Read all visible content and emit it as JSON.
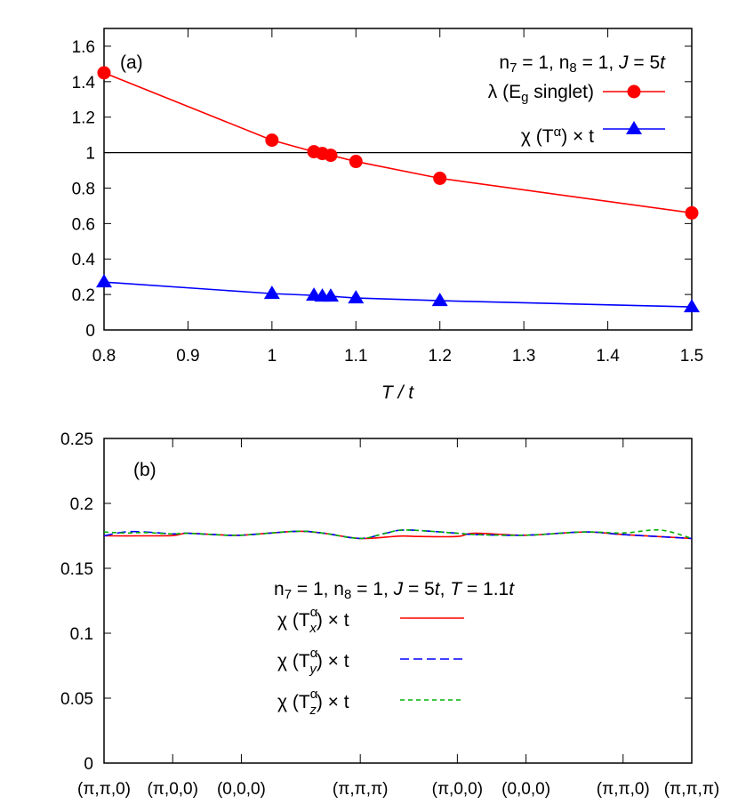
{
  "chart_data": [
    {
      "type": "line",
      "panel_label": "(a)",
      "xlabel": "T / t",
      "ylabel": "",
      "xlim": [
        0.8,
        1.5
      ],
      "ylim": [
        0,
        1.7
      ],
      "xticks": [
        "0.8",
        "0.9",
        "1",
        "1.1",
        "1.2",
        "1.3",
        "1.4",
        "1.5"
      ],
      "yticks": [
        "0",
        "0.2",
        "0.4",
        "0.6",
        "0.8",
        "1",
        "1.2",
        "1.4",
        "1.6"
      ],
      "annotation": "n7 = 1, n8 = 1, J = 5t",
      "reference_line": 1,
      "legend_position": "top-right",
      "series": [
        {
          "name": "λ (Eg singlet)",
          "color": "#ff0000",
          "marker": "circle",
          "x": [
            0.8,
            1.0,
            1.05,
            1.06,
            1.07,
            1.1,
            1.2,
            1.5
          ],
          "y": [
            1.45,
            1.07,
            1.005,
            0.995,
            0.985,
            0.95,
            0.855,
            0.66
          ]
        },
        {
          "name": "χ (T^α) × t",
          "color": "#0000ff",
          "marker": "triangle",
          "x": [
            0.8,
            1.0,
            1.05,
            1.06,
            1.07,
            1.1,
            1.2,
            1.5
          ],
          "y": [
            0.27,
            0.205,
            0.195,
            0.19,
            0.19,
            0.18,
            0.165,
            0.13
          ]
        }
      ]
    },
    {
      "type": "line",
      "panel_label": "(b)",
      "xlabel": "",
      "xlim": [
        0,
        8.56
      ],
      "ylim": [
        0,
        0.25
      ],
      "yticks": [
        "0",
        "0.05",
        "0.1",
        "0.15",
        "0.2",
        "0.25"
      ],
      "xtick_positions": [
        0,
        1,
        2,
        3.732,
        5.146,
        6.146,
        7.56,
        8.56
      ],
      "xticks": [
        "(π,π,0)",
        "(π,0,0)",
        "(0,0,0)",
        "(π,π,π)",
        "(π,0,0)",
        "(0,0,0)",
        "(π,π,0)",
        "(π,π,π)"
      ],
      "annotation": "n7 = 1, n8 = 1, J = 5t, T = 1.1t",
      "legend_position": "center-right",
      "series": [
        {
          "name": "χ (Tx^α) × t",
          "color": "#ff0000",
          "dash": "solid",
          "x": [
            0,
            0.5,
            1,
            1.2,
            1.6,
            2,
            2.8,
            3.2,
            3.732,
            4.3,
            4.6,
            5.146,
            5.4,
            6.146,
            7.0,
            7.56,
            8.56
          ],
          "y": [
            0.175,
            0.175,
            0.1752,
            0.177,
            0.176,
            0.1755,
            0.1785,
            0.177,
            0.173,
            0.1748,
            0.1745,
            0.1745,
            0.177,
            0.1755,
            0.178,
            0.176,
            0.173
          ]
        },
        {
          "name": "χ (Ty^α) × t",
          "color": "#0000ff",
          "dash": "long",
          "x": [
            0,
            0.3,
            0.6,
            1,
            1.2,
            1.6,
            2,
            2.8,
            3.2,
            3.732,
            4.1,
            4.4,
            5.146,
            5.4,
            6.146,
            7.0,
            7.56,
            8.56
          ],
          "y": [
            0.175,
            0.178,
            0.178,
            0.1765,
            0.177,
            0.176,
            0.1755,
            0.1785,
            0.177,
            0.173,
            0.177,
            0.1795,
            0.177,
            0.176,
            0.1755,
            0.178,
            0.176,
            0.173
          ]
        },
        {
          "name": "χ (Tz^α) × t",
          "color": "#00b000",
          "dash": "short",
          "x": [
            0,
            0.3,
            0.6,
            1,
            1.2,
            1.6,
            2,
            2.8,
            3.2,
            3.732,
            4.1,
            4.4,
            5.146,
            5.4,
            6.146,
            7.0,
            7.56,
            8.1,
            8.56
          ],
          "y": [
            0.178,
            0.1772,
            0.1775,
            0.1765,
            0.177,
            0.176,
            0.1755,
            0.1785,
            0.177,
            0.173,
            0.177,
            0.1795,
            0.177,
            0.176,
            0.1755,
            0.178,
            0.1772,
            0.1795,
            0.173
          ]
        }
      ]
    }
  ],
  "legend_a": {
    "annotation": [
      "n",
      "7",
      " = 1, n",
      "8",
      " = 1, ",
      "J",
      " = 5",
      "t"
    ],
    "s1": "λ (E",
    "s1sub": "g",
    "s1end": " singlet)",
    "s2": "χ (T",
    "s2sup": "α",
    "s2end": ") × t"
  },
  "legend_b": {
    "annotation": [
      "n",
      "7",
      " = 1, n",
      "8",
      " = 1, ",
      "J",
      " = 5",
      "t",
      ", ",
      "T",
      " = 1.1",
      "t"
    ],
    "pre": "χ (T",
    "subs": [
      "x",
      "y",
      "z"
    ],
    "sup": "α",
    "end": ") × t"
  }
}
